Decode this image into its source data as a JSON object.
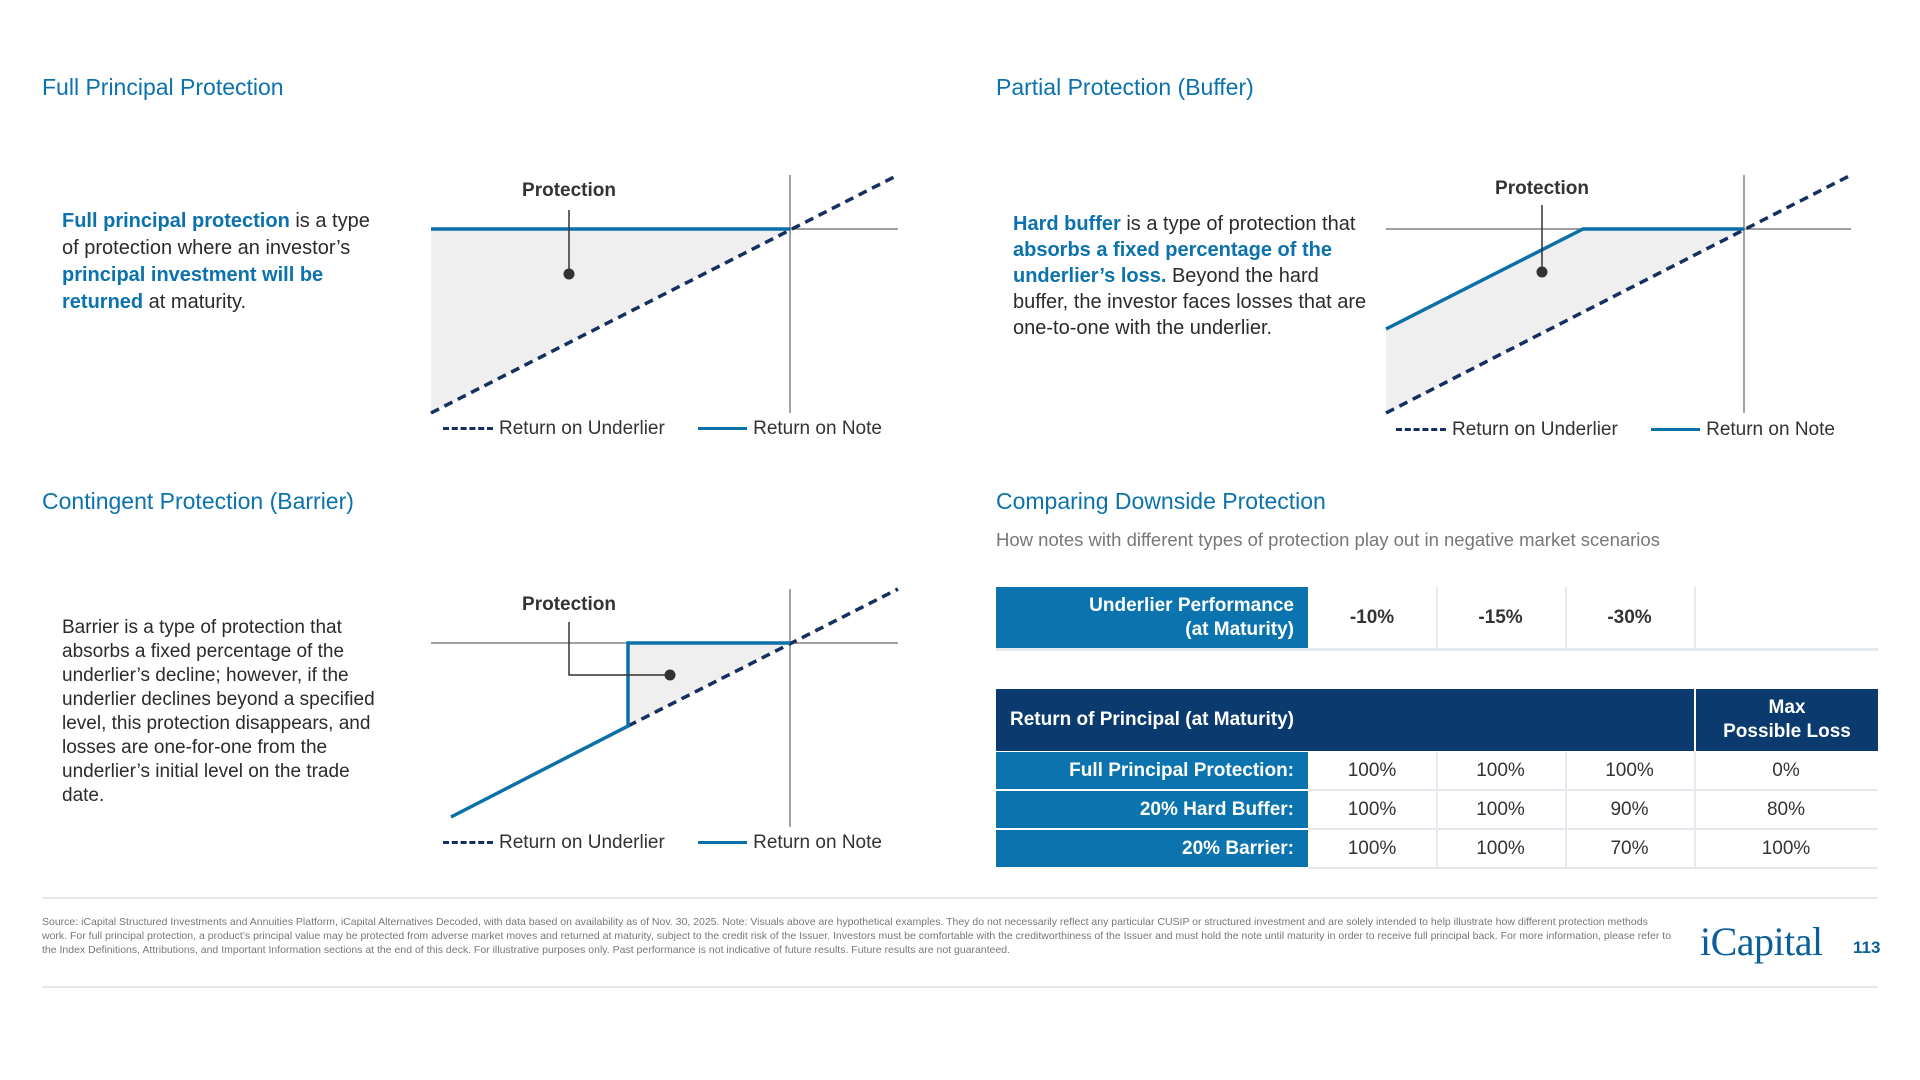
{
  "sections": {
    "full": {
      "title": "Full Principal Protection",
      "para": [
        {
          "t": "Full principal protection",
          "b": true
        },
        {
          "t": " is a type of protection where an investor’s ",
          "b": false
        },
        {
          "t": "principal investment will be returned",
          "b": true
        },
        {
          "t": " at maturity.",
          "b": false
        }
      ]
    },
    "buffer": {
      "title": "Partial Protection (Buffer)",
      "para": [
        {
          "t": "Hard buffer",
          "b": true
        },
        {
          "t": " is a type of protection that ",
          "b": false
        },
        {
          "t": "absorbs a fixed percentage of the underlier’s loss.",
          "b": true
        },
        {
          "t": " Beyond the hard buffer, the investor faces losses that are one-to-one with the underlier.",
          "b": false
        }
      ]
    },
    "barrier": {
      "title": "Contingent Protection (Barrier)",
      "para": [
        {
          "t": "Barrier is a type of protection that absorbs a fixed percentage of the underlier’s decline; however, if the underlier declines beyond a specified level, this protection disappears, and losses are one-for-one from the underlier’s initial level on the trade date.",
          "b": false
        }
      ]
    }
  },
  "chart_labels": {
    "protection": "Protection",
    "legend_underlier": "Return on Underlier",
    "legend_note": "Return on Note"
  },
  "comparison": {
    "title": "Comparing Downside Protection",
    "subtitle": "How notes with different types of protection play out in negative market scenarios",
    "perf_header": [
      "Underlier Performance",
      "(at Maturity)"
    ],
    "scenarios": [
      "-10%",
      "-15%",
      "-30%"
    ],
    "return_header": "Return of Principal (at Maturity)",
    "max_loss_header": [
      "Max",
      "Possible Loss"
    ],
    "rows": [
      {
        "label": "Full Principal Protection:",
        "values": [
          "100%",
          "100%",
          "100%"
        ],
        "max_loss": "0%"
      },
      {
        "label": "20% Hard Buffer:",
        "values": [
          "100%",
          "100%",
          "90%"
        ],
        "max_loss": "80%"
      },
      {
        "label": "20% Barrier:",
        "values": [
          "100%",
          "100%",
          "70%"
        ],
        "max_loss": "100%"
      }
    ]
  },
  "footer": {
    "text": "Source: iCapital Structured Investments and Annuities Platform, iCapital Alternatives Decoded, with data based on availability as of Nov. 30, 2025. Note: Visuals  above are hypothetical examples. They do not necessarily reflect any particular CUSIP or structured investment and are solely intended to help illustrate how different protection methods work. For full principal protection, a product’s principal value may be protected from adverse market moves and returned at maturity, subject to the credit risk of the Issuer. Investors must be comfortable with the creditworthiness of the Issuer and must hold the note until maturity in order to receive full principal back. For more information, please refer to the Index Definitions, Attributions, and Important Information sections at the end of this deck. For illustrative purposes only. Past performance is not indicative of future results. Future results are not guaranteed.",
    "logo": "iCapital",
    "page_number": "113"
  },
  "colors": {
    "blue": "#0b72ad",
    "navy": "#0a3a6e",
    "dash": "#14305e",
    "fill": "#efefef"
  }
}
